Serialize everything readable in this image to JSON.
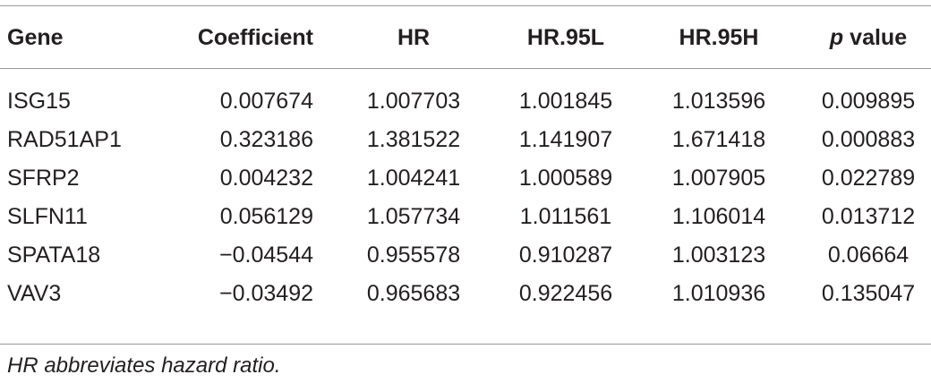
{
  "table": {
    "header": [
      "Gene",
      "Coefficient",
      "HR",
      "HR.95L",
      "HR.95H",
      {
        "italic": "p",
        "text": "value"
      }
    ],
    "rows": [
      [
        "ISG15",
        "0.007674",
        "1.007703",
        "1.001845",
        "1.013596",
        "0.009895"
      ],
      [
        "RAD51AP1",
        "0.323186",
        "1.381522",
        "1.141907",
        "1.671418",
        "0.000883"
      ],
      [
        "SFRP2",
        "0.004232",
        "1.004241",
        "1.000589",
        "1.007905",
        "0.022789"
      ],
      [
        "SLFN11",
        "0.056129",
        "1.057734",
        "1.011561",
        "1.106014",
        "0.013712"
      ],
      [
        "SPATA18",
        "−0.04544",
        "0.955578",
        "0.910287",
        "1.003123",
        "0.06664"
      ],
      [
        "VAV3",
        "−0.03492",
        "0.965683",
        "0.922456",
        "1.010936",
        "0.135047"
      ]
    ],
    "footnote": "HR abbreviates hazard ratio."
  }
}
